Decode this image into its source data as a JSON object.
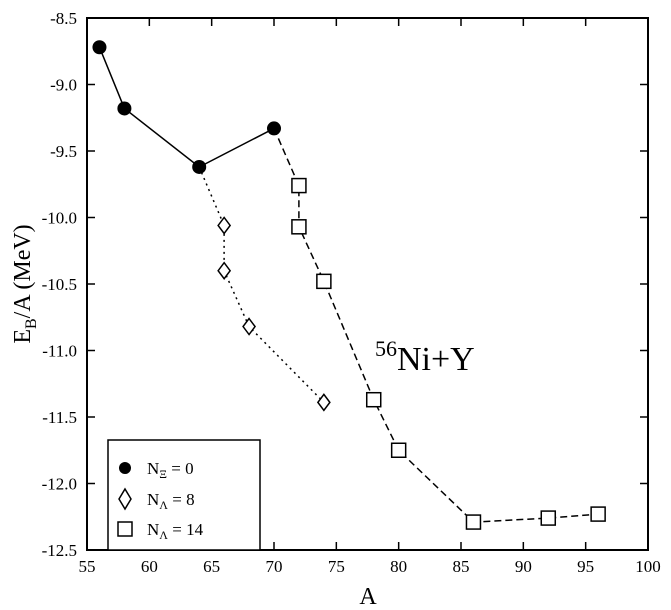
{
  "chart_data": {
    "type": "line",
    "xlabel": "A",
    "ylabel": {
      "main": "E",
      "sub": "B",
      "rest": "/A (MeV)"
    },
    "xlim": [
      55,
      100
    ],
    "ylim": [
      -12.5,
      -8.5
    ],
    "xticks": [
      55,
      60,
      65,
      70,
      75,
      80,
      85,
      90,
      95,
      100
    ],
    "yticks": [
      -8.5,
      -9.0,
      -9.5,
      -10.0,
      -10.5,
      -11.0,
      -11.5,
      -12.0,
      -12.5
    ],
    "xtick_labels": [
      "55",
      "60",
      "65",
      "70",
      "75",
      "80",
      "85",
      "90",
      "95",
      "100"
    ],
    "ytick_labels": [
      "-8.5",
      "-9.0",
      "-9.5",
      "-10.0",
      "-10.5",
      "-11.0",
      "-11.5",
      "-12.0",
      "-12.5"
    ],
    "grid": false,
    "legend_position": "bottom-left",
    "annotation": {
      "sup": "56",
      "text": "Ni+Y"
    },
    "series": [
      {
        "name": "NΞ = 0",
        "legend": {
          "main": "N",
          "sub": "Ξ",
          "rest": " = 0"
        },
        "marker": "filled-circle",
        "line": "solid",
        "x": [
          56,
          58,
          64,
          70
        ],
        "y": [
          -8.72,
          -9.18,
          -9.62,
          -9.33
        ]
      },
      {
        "name": "NΛ = 8",
        "legend": {
          "main": "N",
          "sub": "Λ",
          "rest": " = 8"
        },
        "marker": "open-diamond",
        "line": "dotted",
        "x": [
          64,
          66,
          66,
          68,
          74
        ],
        "y": [
          -9.62,
          -10.06,
          -10.4,
          -10.82,
          -11.39
        ],
        "marker_indices": [
          1,
          2,
          3,
          4
        ]
      },
      {
        "name": "NΛ = 14",
        "legend": {
          "main": "N",
          "sub": "Λ",
          "rest": " = 14"
        },
        "marker": "open-square",
        "line": "dashed",
        "x": [
          70,
          72,
          72,
          74,
          78,
          80,
          86,
          92,
          96
        ],
        "y": [
          -9.33,
          -9.76,
          -10.07,
          -10.48,
          -11.37,
          -11.75,
          -12.29,
          -12.26,
          -12.23
        ],
        "marker_indices": [
          1,
          2,
          3,
          4,
          5,
          6,
          7,
          8
        ]
      }
    ]
  }
}
